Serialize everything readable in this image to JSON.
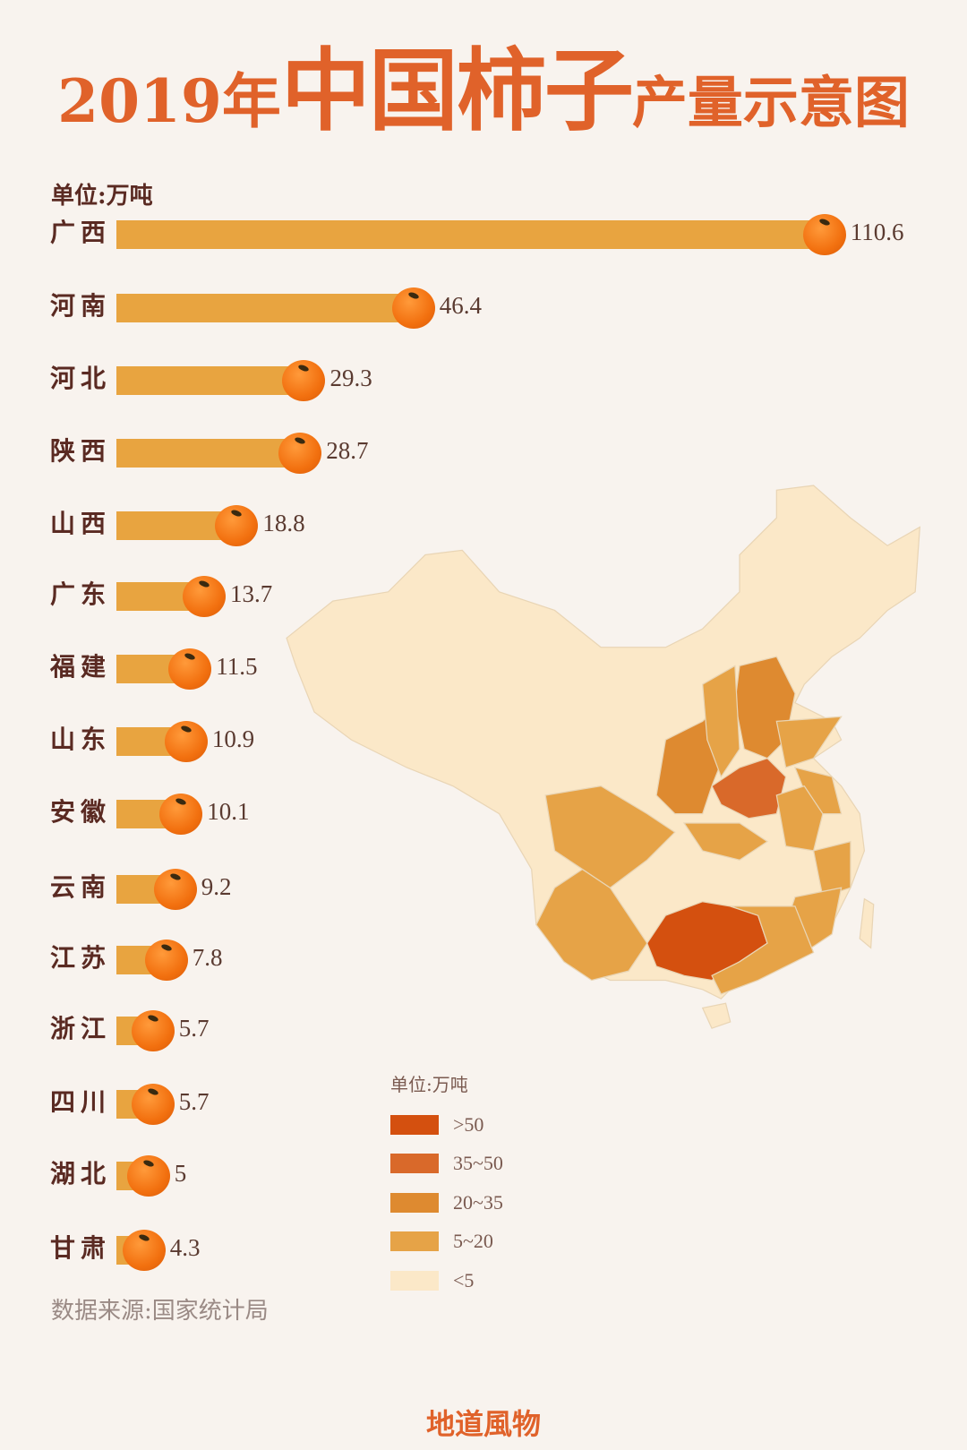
{
  "title": {
    "part1": "2019年",
    "part2": "中国柿子",
    "part3": "产量示意图"
  },
  "unit_label": "单位:万吨",
  "chart_data": {
    "type": "bar",
    "orientation": "horizontal",
    "unit": "万吨",
    "categories": [
      "广西",
      "河南",
      "河北",
      "陕西",
      "山西",
      "广东",
      "福建",
      "山东",
      "安徽",
      "云南",
      "江苏",
      "浙江",
      "四川",
      "湖北",
      "甘肃"
    ],
    "values": [
      110.6,
      46.4,
      29.3,
      28.7,
      18.8,
      13.7,
      11.5,
      10.9,
      10.1,
      9.2,
      7.8,
      5.7,
      5.7,
      5,
      4.3
    ],
    "value_labels": [
      "110.6",
      "46.4",
      "29.3",
      "28.7",
      "18.8",
      "13.7",
      "11.5",
      "10.9",
      "10.1",
      "9.2",
      "7.8",
      "5.7",
      "5.7",
      "5",
      "4.3"
    ],
    "bar_color": "#e8a440",
    "marker_icon": "persimmon-icon"
  },
  "map": {
    "legend_title": "单位:万吨",
    "legend": [
      {
        "label": ">50",
        "color": "#d4500f"
      },
      {
        "label": "35~50",
        "color": "#d9692a"
      },
      {
        "label": "20~35",
        "color": "#de8a30"
      },
      {
        "label": "5~20",
        "color": "#e6a347"
      },
      {
        "label": "<5",
        "color": "#fbe8c8"
      }
    ]
  },
  "source": "数据来源:国家统计局",
  "footer": "地道風物"
}
